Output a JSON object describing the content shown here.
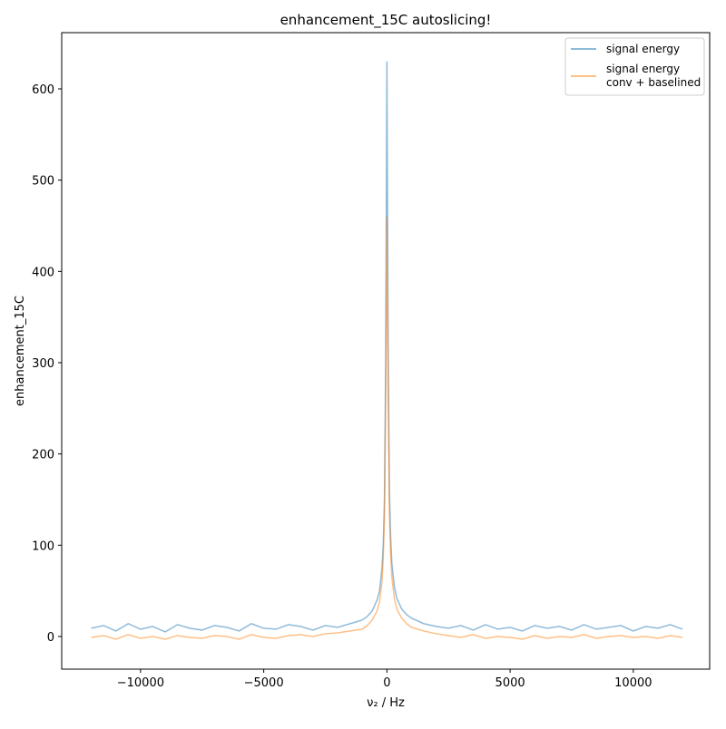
{
  "chart_data": {
    "type": "line",
    "title": "enhancement_15C autoslicing!",
    "x_label": "ν₂ / Hz",
    "y_label": "enhancement_15C",
    "x": [
      -12000,
      -11500,
      -11000,
      -10500,
      -10000,
      -9500,
      -9000,
      -8500,
      -8000,
      -7500,
      -7000,
      -6500,
      -6000,
      -5500,
      -5000,
      -4500,
      -4000,
      -3500,
      -3000,
      -2500,
      -2000,
      -1500,
      -1000,
      -800,
      -600,
      -400,
      -300,
      -200,
      -150,
      -100,
      -50,
      0,
      50,
      100,
      150,
      200,
      300,
      400,
      600,
      800,
      1000,
      1500,
      2000,
      2500,
      3000,
      3500,
      4000,
      4500,
      5000,
      5500,
      6000,
      6500,
      7000,
      7500,
      8000,
      8500,
      9000,
      9500,
      10000,
      10500,
      11000,
      11500,
      12000
    ],
    "series": [
      {
        "name": "signal energy",
        "color": "#1f77b4",
        "values": [
          9,
          12,
          6,
          14,
          8,
          11,
          5,
          13,
          9,
          7,
          12,
          10,
          6,
          14,
          9,
          8,
          13,
          11,
          7,
          12,
          10,
          14,
          18,
          22,
          28,
          40,
          50,
          75,
          100,
          150,
          300,
          630,
          320,
          160,
          110,
          80,
          55,
          42,
          30,
          24,
          20,
          14,
          11,
          9,
          12,
          7,
          13,
          8,
          10,
          6,
          12,
          9,
          11,
          7,
          13,
          8,
          10,
          12,
          6,
          11,
          9,
          13,
          8
        ]
      },
      {
        "name": "signal energy\nconv + baselined",
        "color": "#ff7f0e",
        "values": [
          -1,
          1,
          -3,
          2,
          -2,
          0,
          -3,
          1,
          -1,
          -2,
          1,
          0,
          -3,
          2,
          -1,
          -2,
          1,
          2,
          0,
          3,
          4,
          6,
          8,
          12,
          18,
          28,
          38,
          60,
          85,
          130,
          260,
          460,
          270,
          135,
          90,
          65,
          42,
          30,
          20,
          14,
          10,
          6,
          3,
          1,
          -1,
          2,
          -2,
          0,
          -1,
          -3,
          1,
          -2,
          0,
          -1,
          2,
          -2,
          0,
          1,
          -1,
          0,
          -2,
          1,
          -1
        ]
      }
    ],
    "xlim": [
      -13200,
      13100
    ],
    "ylim": [
      -35.8,
      661.6
    ],
    "xticks": [
      {
        "value": -10000,
        "label": "−10000"
      },
      {
        "value": -5000,
        "label": "−5000"
      },
      0,
      5000,
      10000
    ],
    "yticks": [
      0,
      100,
      200,
      300,
      400,
      500,
      600
    ],
    "legend": "upper right"
  }
}
